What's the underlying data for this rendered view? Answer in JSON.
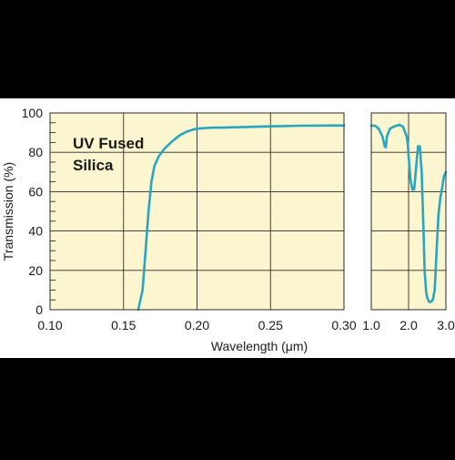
{
  "chart_data": {
    "type": "line",
    "xlabel": "Wavelength (μm)",
    "ylabel": "Transmission (%)",
    "annotation": [
      "UV Fused",
      "Silica"
    ],
    "colors": {
      "line": "#2aa5c0",
      "plot_background": "#fbf6d0",
      "grid": "#2b2b2b",
      "page_band": "#ffffff",
      "page_background": "#000000"
    },
    "grid": true,
    "ylim": [
      0,
      100
    ],
    "y_ticks": [
      "0",
      "20",
      "40",
      "60",
      "80",
      "100"
    ],
    "panels": [
      {
        "name": "uv",
        "xlim": [
          0.1,
          0.3
        ],
        "x_ticks": [
          "0.10",
          "0.15",
          "0.20",
          "0.25",
          "0.30"
        ],
        "x": [
          0.16,
          0.163,
          0.165,
          0.167,
          0.169,
          0.171,
          0.174,
          0.178,
          0.183,
          0.188,
          0.193,
          0.197,
          0.2,
          0.205,
          0.21,
          0.22,
          0.23,
          0.25,
          0.27,
          0.29,
          0.3
        ],
        "y": [
          0,
          10,
          30,
          50,
          65,
          73,
          78,
          82,
          85.5,
          88.5,
          90.5,
          91.5,
          92,
          92.3,
          92.5,
          92.6,
          92.8,
          93.2,
          93.5,
          93.6,
          93.6
        ]
      },
      {
        "name": "ir",
        "xlim": [
          1.0,
          3.0
        ],
        "x_ticks": [
          "1.0",
          "2.0",
          "3.0"
        ],
        "x": [
          1.0,
          1.1,
          1.2,
          1.3,
          1.36,
          1.39,
          1.42,
          1.5,
          1.6,
          1.75,
          1.85,
          1.95,
          1.98,
          2.0,
          2.05,
          2.1,
          2.15,
          2.2,
          2.25,
          2.3,
          2.35,
          2.4,
          2.43,
          2.47,
          2.5,
          2.55,
          2.6,
          2.65,
          2.7,
          2.75,
          2.8,
          2.85,
          2.9,
          2.95,
          3.0
        ],
        "y": [
          93.5,
          93.5,
          92,
          88,
          83,
          82.5,
          88,
          92,
          93,
          94,
          93,
          88,
          84,
          78,
          66,
          61,
          61,
          72,
          83,
          83,
          70,
          40,
          20,
          9,
          6,
          4,
          4,
          5,
          10,
          30,
          48,
          57,
          62,
          68,
          70
        ]
      }
    ]
  }
}
